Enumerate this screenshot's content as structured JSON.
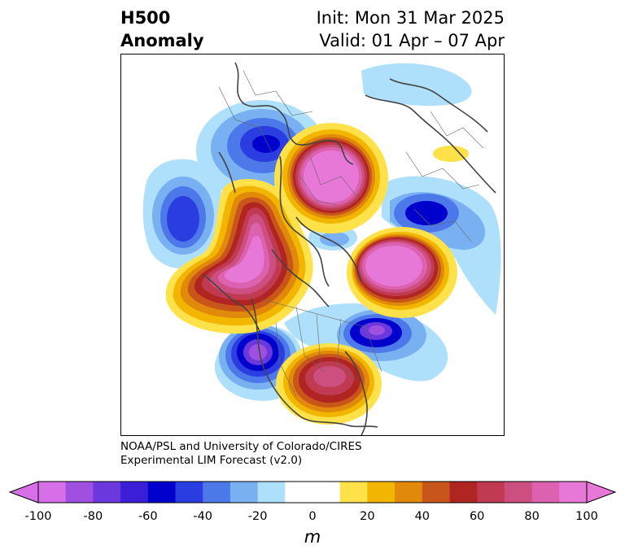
{
  "header": {
    "title_line1": "H500",
    "title_line2": "Anomaly",
    "init_text": "Init: Mon 31 Mar 2025",
    "valid_text": "Valid: 01 Apr – 07 Apr"
  },
  "credit": {
    "line1": "NOAA/PSL and University of Colorado/CIRES",
    "line2": "Experimental LIM Forecast (v2.0)"
  },
  "colorbar": {
    "unit_label": "m",
    "ticks": [
      "-100",
      "-80",
      "-60",
      "-40",
      "-20",
      "0",
      "20",
      "40",
      "60",
      "80",
      "100"
    ],
    "bins": [
      {
        "from": -100,
        "to": -90,
        "color": "#d66fe8"
      },
      {
        "from": -90,
        "to": -80,
        "color": "#a050e0"
      },
      {
        "from": -80,
        "to": -70,
        "color": "#6a38dc"
      },
      {
        "from": -70,
        "to": -60,
        "color": "#3a1ed8"
      },
      {
        "from": -60,
        "to": -50,
        "color": "#0000cc"
      },
      {
        "from": -50,
        "to": -40,
        "color": "#2a3de0"
      },
      {
        "from": -40,
        "to": -30,
        "color": "#4d78ea"
      },
      {
        "from": -30,
        "to": -20,
        "color": "#78b0f2"
      },
      {
        "from": -20,
        "to": -10,
        "color": "#aee0fb"
      },
      {
        "from": -10,
        "to": 10,
        "color": "#ffffff"
      },
      {
        "from": 10,
        "to": 20,
        "color": "#ffe24a"
      },
      {
        "from": 20,
        "to": 30,
        "color": "#f2b600"
      },
      {
        "from": 30,
        "to": 40,
        "color": "#e0890a"
      },
      {
        "from": 40,
        "to": 50,
        "color": "#c8561a"
      },
      {
        "from": 50,
        "to": 60,
        "color": "#b02422"
      },
      {
        "from": 60,
        "to": 70,
        "color": "#c03a52"
      },
      {
        "from": 70,
        "to": 80,
        "color": "#cc4f80"
      },
      {
        "from": 80,
        "to": 90,
        "color": "#dc62b0"
      },
      {
        "from": 90,
        "to": 100,
        "color": "#e878d8"
      }
    ],
    "extend_low_color": "#d66fe8",
    "extend_high_color": "#e878d8"
  }
}
